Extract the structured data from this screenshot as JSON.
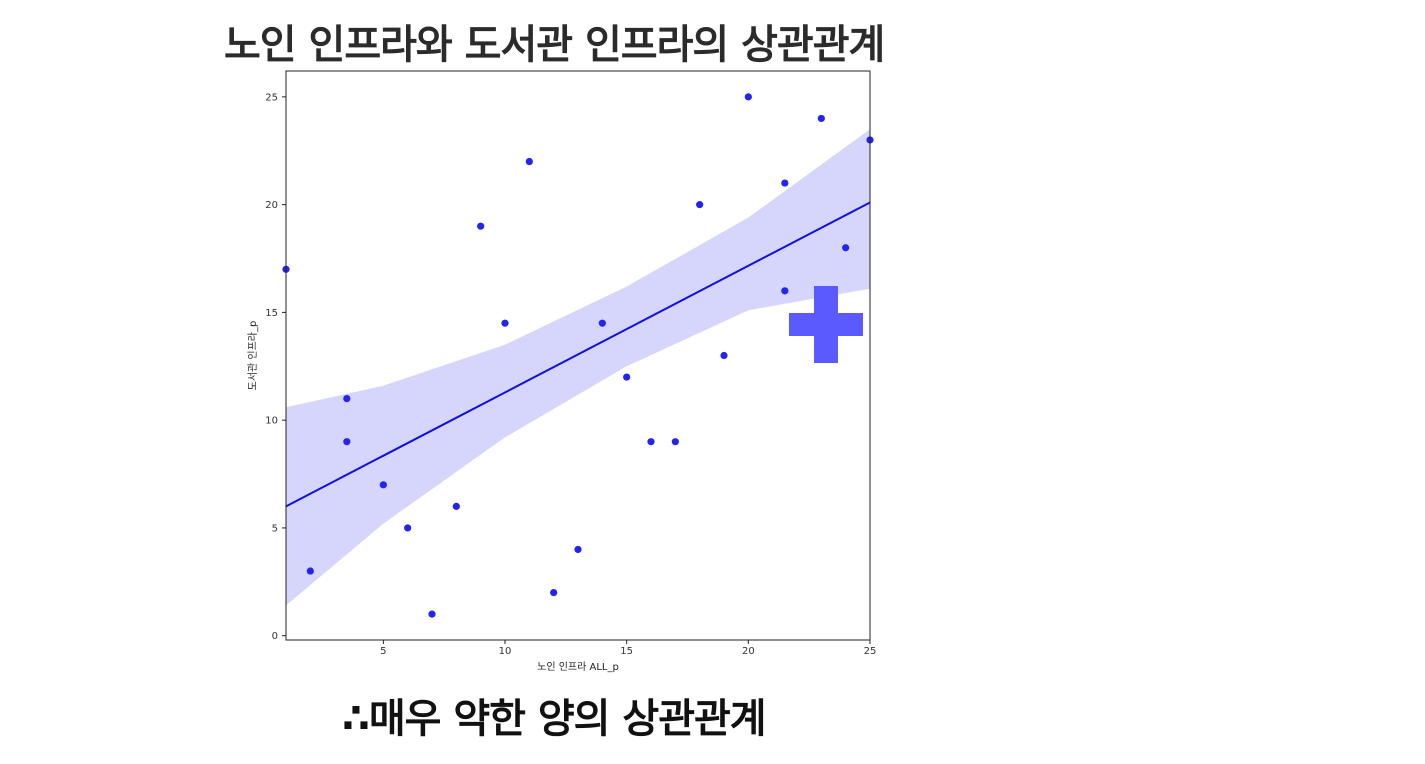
{
  "slide": {
    "title": "노인 인프라와 도서관 인프라의 상관관계",
    "conclusion": "∴매우 약한 양의 상관관계"
  },
  "chart_data": {
    "type": "scatter",
    "xlabel": "노인 인프라 ALL_p",
    "ylabel": "도서관 인프라_p",
    "xlim": [
      1,
      25
    ],
    "ylim": [
      -0.2,
      26.2
    ],
    "xticks": [
      5,
      10,
      15,
      20,
      25
    ],
    "yticks": [
      0,
      5,
      10,
      15,
      20,
      25
    ],
    "grid": false,
    "points": [
      {
        "x": 1,
        "y": 17
      },
      {
        "x": 2,
        "y": 3
      },
      {
        "x": 3.5,
        "y": 11
      },
      {
        "x": 3.5,
        "y": 9
      },
      {
        "x": 5,
        "y": 7
      },
      {
        "x": 6,
        "y": 5
      },
      {
        "x": 7,
        "y": 1
      },
      {
        "x": 8,
        "y": 6
      },
      {
        "x": 9,
        "y": 19
      },
      {
        "x": 10,
        "y": 14.5
      },
      {
        "x": 11,
        "y": 22
      },
      {
        "x": 12,
        "y": 2
      },
      {
        "x": 13,
        "y": 4
      },
      {
        "x": 14,
        "y": 14.5
      },
      {
        "x": 15,
        "y": 12
      },
      {
        "x": 16,
        "y": 9
      },
      {
        "x": 17,
        "y": 9
      },
      {
        "x": 18,
        "y": 20
      },
      {
        "x": 19,
        "y": 13
      },
      {
        "x": 20,
        "y": 25
      },
      {
        "x": 21.5,
        "y": 21
      },
      {
        "x": 21.5,
        "y": 16
      },
      {
        "x": 23,
        "y": 24
      },
      {
        "x": 24,
        "y": 18
      },
      {
        "x": 25,
        "y": 23
      }
    ],
    "regression": {
      "x": [
        1,
        5,
        10,
        15,
        20,
        25
      ],
      "y": [
        6.0,
        8.35,
        11.3,
        14.25,
        17.2,
        20.1
      ],
      "ci_lower": [
        1.4,
        5.2,
        9.2,
        12.5,
        15.1,
        16.1
      ],
      "ci_upper": [
        10.6,
        11.6,
        13.5,
        16.2,
        19.4,
        23.5
      ]
    },
    "colors": {
      "points": "#2424f0",
      "line": "#1010e0",
      "band": "#d6d6fc",
      "plus_mark": "#5a5afe"
    },
    "annotation_icon": "plus-sign"
  }
}
